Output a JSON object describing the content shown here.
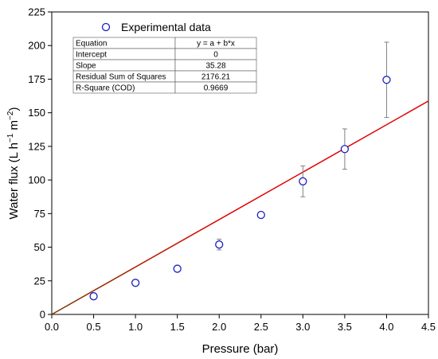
{
  "chart_data": {
    "type": "scatter",
    "xlabel": "Pressure (bar)",
    "ylabel_main": "Water flux (L h",
    "ylabel_sup1": "−1",
    "ylabel_mid": " m",
    "ylabel_sup2": "−2",
    "ylabel_end": ")",
    "xlim": [
      0,
      4.5
    ],
    "ylim": [
      0,
      225
    ],
    "xticks": [
      {
        "value": 0,
        "label": "0.0"
      },
      {
        "value": 0.5,
        "label": "0.5"
      },
      {
        "value": 1,
        "label": "1.0"
      },
      {
        "value": 1.5,
        "label": "1.5"
      },
      {
        "value": 2,
        "label": "2.0"
      },
      {
        "value": 2.5,
        "label": "2.5"
      },
      {
        "value": 3,
        "label": "3.0"
      },
      {
        "value": 3.5,
        "label": "3.5"
      },
      {
        "value": 4,
        "label": "4.0"
      },
      {
        "value": 4.5,
        "label": "4.5"
      }
    ],
    "yticks": [
      {
        "value": 0,
        "label": "0"
      },
      {
        "value": 25,
        "label": "25"
      },
      {
        "value": 50,
        "label": "50"
      },
      {
        "value": 75,
        "label": "75"
      },
      {
        "value": 100,
        "label": "100"
      },
      {
        "value": 125,
        "label": "125"
      },
      {
        "value": 150,
        "label": "150"
      },
      {
        "value": 175,
        "label": "175"
      },
      {
        "value": 200,
        "label": "200"
      },
      {
        "value": 225,
        "label": "225"
      }
    ],
    "grid": false,
    "legend": {
      "position": "top-left",
      "entry": "Experimental data"
    },
    "series": [
      {
        "name": "Experimental data",
        "marker": "open-circle",
        "color": "#1f1fbf",
        "points": [
          {
            "x": 0.5,
            "y": 13.5,
            "err": 0
          },
          {
            "x": 1.0,
            "y": 23.5,
            "err": 0
          },
          {
            "x": 1.5,
            "y": 34.0,
            "err": 0
          },
          {
            "x": 2.0,
            "y": 52.0,
            "err": 4
          },
          {
            "x": 2.5,
            "y": 74.0,
            "err": 0
          },
          {
            "x": 3.0,
            "y": 99.0,
            "err": 11.5
          },
          {
            "x": 3.5,
            "y": 123.0,
            "err": 15
          },
          {
            "x": 4.0,
            "y": 174.5,
            "err": 28
          }
        ]
      }
    ],
    "fit": {
      "intercept": 0,
      "slope": 35.28,
      "color": "#e00000",
      "low_color": "#7a3a00"
    },
    "stats_table": [
      [
        "Equation",
        "y = a + b*x"
      ],
      [
        "Intercept",
        "0"
      ],
      [
        "Slope",
        "35.28"
      ],
      [
        "Residual Sum of Squares",
        "2176.21"
      ],
      [
        "R-Square (COD)",
        "0.9669"
      ]
    ]
  }
}
